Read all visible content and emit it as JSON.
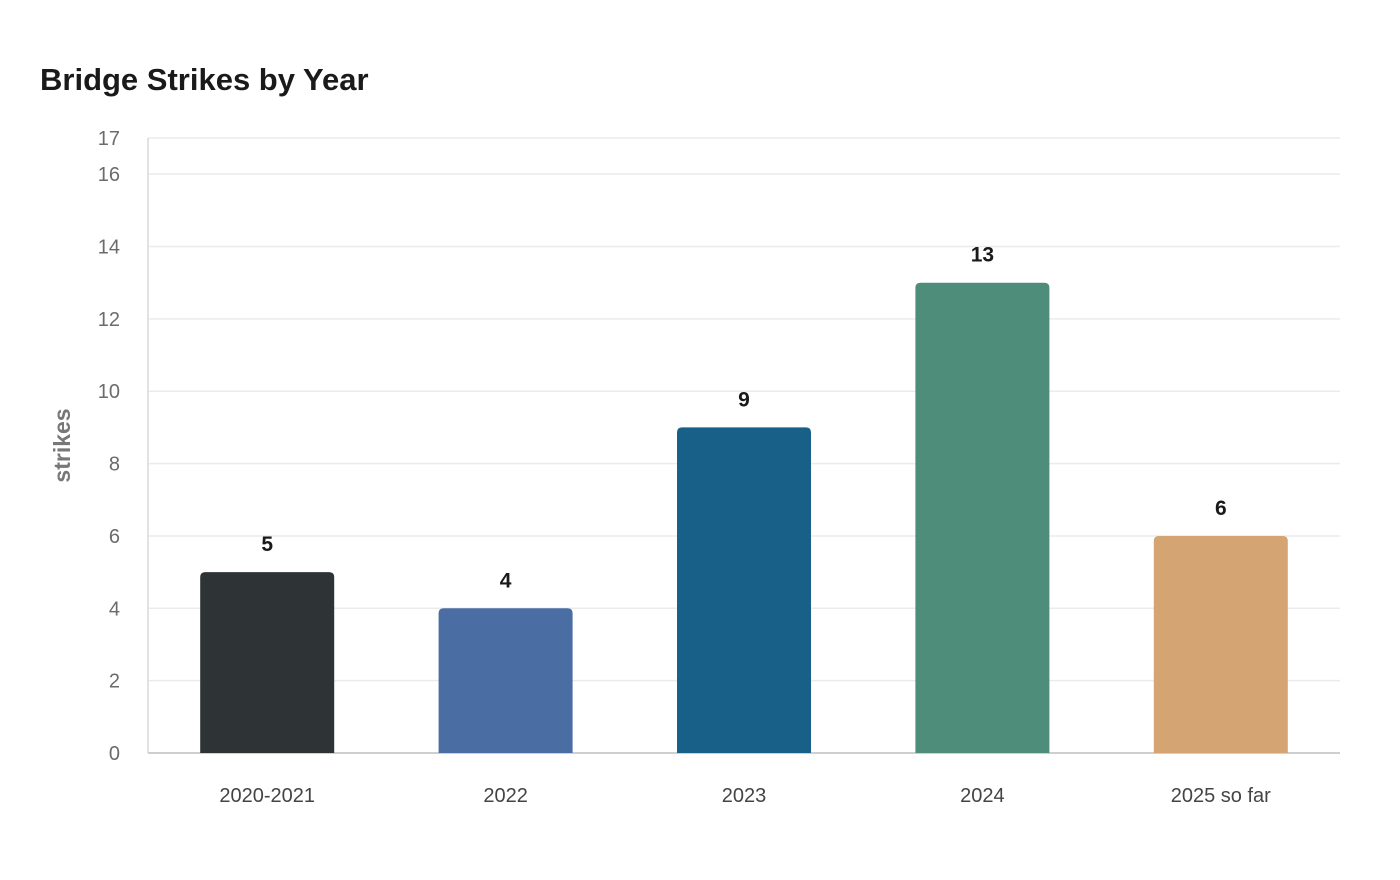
{
  "chart_data": {
    "type": "bar",
    "title": "Bridge Strikes by Year",
    "xlabel": "",
    "ylabel": "strikes",
    "categories": [
      "2020-2021",
      "2022",
      "2023",
      "2024",
      "2025 so far"
    ],
    "values": [
      5,
      4,
      9,
      13,
      6
    ],
    "colors": [
      "#2e3436",
      "#4a6da3",
      "#186088",
      "#4f8d7b",
      "#d4a472"
    ],
    "ylim": [
      0,
      17
    ],
    "yticks": [
      0,
      2,
      4,
      6,
      8,
      10,
      12,
      14,
      16,
      17
    ],
    "grid": true,
    "legend": "none"
  }
}
